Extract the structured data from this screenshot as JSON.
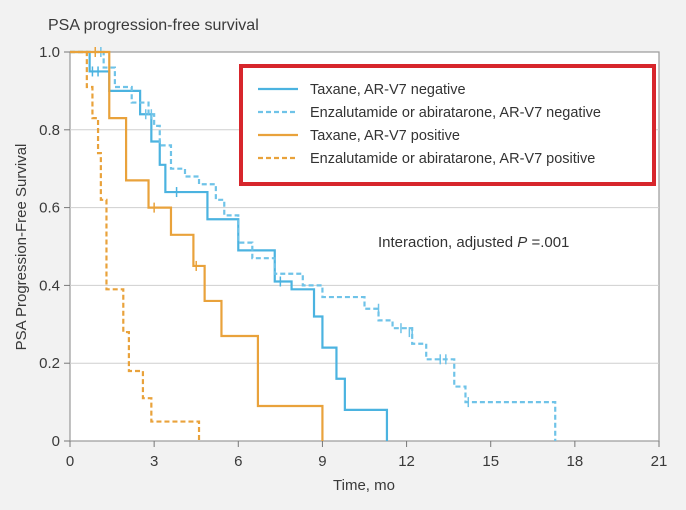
{
  "chart_data": {
    "type": "line",
    "step": true,
    "title": "PSA progression-free survival",
    "xlabel": "Time, mo",
    "ylabel": "PSA Progression-Free Survival",
    "xlim": [
      0,
      21
    ],
    "ylim": [
      0,
      1.0
    ],
    "xticks": [
      0,
      3,
      6,
      9,
      12,
      15,
      18,
      21
    ],
    "yticks": [
      0,
      0.2,
      0.4,
      0.6,
      0.8,
      1.0
    ],
    "xtick_labels": [
      "0",
      "3",
      "6",
      "9",
      "12",
      "15",
      "18",
      "21"
    ],
    "ytick_labels": [
      "0",
      "0.2",
      "0.4",
      "0.6",
      "0.8",
      "1.0"
    ],
    "grid": "horizontal",
    "legend_position": "top-right",
    "legend_highlight_color": "#d7262c",
    "annotation": {
      "prefix": "Interaction, adjusted ",
      "italic": "P",
      "suffix": " =.001"
    },
    "series": [
      {
        "name": "Taxane, AR-V7 negative",
        "color": "#4bb3e0",
        "dash": false,
        "x": [
          0,
          0.7,
          1.4,
          2.5,
          2.9,
          3.2,
          3.4,
          3.6,
          4.9,
          6.0,
          7.3,
          7.9,
          8.7,
          9.0,
          9.5,
          9.8,
          11.3
        ],
        "y": [
          1.0,
          0.95,
          0.9,
          0.84,
          0.77,
          0.71,
          0.64,
          0.64,
          0.57,
          0.49,
          0.41,
          0.39,
          0.32,
          0.24,
          0.16,
          0.08,
          0
        ],
        "censor": [
          [
            0.8,
            0.95
          ],
          [
            1.0,
            0.95
          ],
          [
            3.8,
            0.64
          ],
          [
            7.5,
            0.41
          ]
        ]
      },
      {
        "name": "Enzalutamide or abiratarone, AR-V7 negative",
        "color": "#6fc3e8",
        "dash": true,
        "x": [
          0,
          1.2,
          1.6,
          2.2,
          2.8,
          3.0,
          3.2,
          3.6,
          4.1,
          4.6,
          5.2,
          5.5,
          6.0,
          6.5,
          7.3,
          8.3,
          9.0,
          10.5,
          11.0,
          11.5,
          12.2,
          12.7,
          13.1,
          13.7,
          14.1,
          15.0,
          17.3
        ],
        "y": [
          1.0,
          0.96,
          0.91,
          0.87,
          0.84,
          0.81,
          0.76,
          0.7,
          0.68,
          0.66,
          0.62,
          0.58,
          0.51,
          0.47,
          0.43,
          0.4,
          0.37,
          0.34,
          0.31,
          0.29,
          0.25,
          0.21,
          0.21,
          0.14,
          0.1,
          0.1,
          0
        ],
        "censor": [
          [
            1.1,
            1.0
          ],
          [
            2.7,
            0.84
          ],
          [
            2.9,
            0.84
          ],
          [
            11.0,
            0.34
          ],
          [
            11.8,
            0.29
          ],
          [
            12.1,
            0.28
          ],
          [
            12.2,
            0.28
          ],
          [
            13.2,
            0.21
          ],
          [
            13.4,
            0.21
          ],
          [
            14.2,
            0.1
          ]
        ]
      },
      {
        "name": "Taxane, AR-V7 positive",
        "color": "#e9a23b",
        "dash": false,
        "x": [
          0,
          1.4,
          2.0,
          2.8,
          3.6,
          4.4,
          4.8,
          5.4,
          6.7,
          9.0
        ],
        "y": [
          1.0,
          0.83,
          0.67,
          0.6,
          0.53,
          0.45,
          0.36,
          0.27,
          0.09,
          0
        ],
        "censor": [
          [
            0.9,
            1.0
          ],
          [
            3.0,
            0.6
          ],
          [
            4.5,
            0.45
          ]
        ]
      },
      {
        "name": "Enzalutamide or abiratarone, AR-V7 positive",
        "color": "#e9a23b",
        "dash": true,
        "x": [
          0,
          0.6,
          0.8,
          1.0,
          1.1,
          1.3,
          1.9,
          2.1,
          2.6,
          2.9,
          3.2,
          4.6
        ],
        "y": [
          1.0,
          0.91,
          0.83,
          0.74,
          0.62,
          0.39,
          0.28,
          0.18,
          0.11,
          0.05,
          0.05,
          0
        ],
        "censor": []
      }
    ]
  }
}
